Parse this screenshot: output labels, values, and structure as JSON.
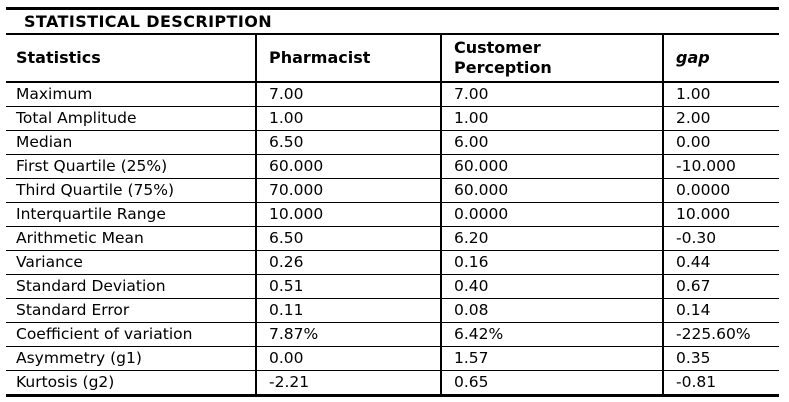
{
  "table": {
    "title": "STATISTICAL DESCRIPTION",
    "columns": {
      "statistics": "Statistics",
      "pharmacist": "Pharmacist",
      "customer_perception": "Customer\nPerception",
      "gap": "gap"
    },
    "rows": [
      {
        "label": "Maximum",
        "pharmacist": "7.00",
        "customer_perception": "7.00",
        "gap": "1.00"
      },
      {
        "label": "Total Amplitude",
        "pharmacist": "1.00",
        "customer_perception": "1.00",
        "gap": "2.00"
      },
      {
        "label": "Median",
        "pharmacist": "6.50",
        "customer_perception": "6.00",
        "gap": "0.00"
      },
      {
        "label": "First Quartile (25%)",
        "pharmacist": "60.000",
        "customer_perception": "60.000",
        "gap": "-10.000"
      },
      {
        "label": "Third Quartile (75%)",
        "pharmacist": "70.000",
        "customer_perception": "60.000",
        "gap": "0.0000"
      },
      {
        "label": "Interquartile Range",
        "pharmacist": "10.000",
        "customer_perception": "0.0000",
        "gap": "10.000"
      },
      {
        "label": "Arithmetic Mean",
        "pharmacist": "6.50",
        "customer_perception": "6.20",
        "gap": "-0.30"
      },
      {
        "label": "Variance",
        "pharmacist": "0.26",
        "customer_perception": "0.16",
        "gap": "0.44"
      },
      {
        "label": "Standard Deviation",
        "pharmacist": "0.51",
        "customer_perception": "0.40",
        "gap": "0.67"
      },
      {
        "label": "Standard Error",
        "pharmacist": "0.11",
        "customer_perception": "0.08",
        "gap": "0.14"
      },
      {
        "label": "Coefficient of variation",
        "pharmacist": "7.87%",
        "customer_perception": "6.42%",
        "gap": "-225.60%"
      },
      {
        "label": "Asymmetry (g1)",
        "pharmacist": "0.00",
        "customer_perception": "1.57",
        "gap": "0.35"
      },
      {
        "label": "Kurtosis (g2)",
        "pharmacist": "-2.21",
        "customer_perception": "0.65",
        "gap": "-0.81"
      }
    ],
    "colors": {
      "border": "#000000",
      "text": "#000000",
      "background": "#ffffff"
    }
  }
}
